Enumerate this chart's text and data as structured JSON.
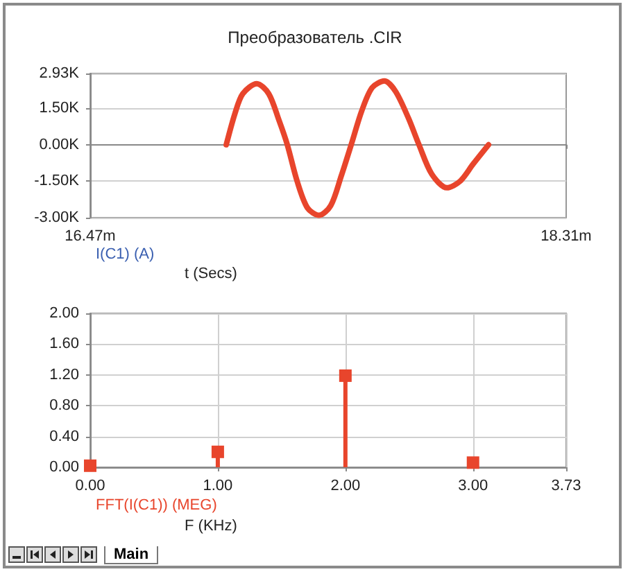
{
  "chart_data": [
    {
      "type": "line",
      "title": "Преобразователь .CIR",
      "xlabel": "t (Secs)",
      "annotations": [
        "I(C1) (A)"
      ],
      "xlim": [
        16.47,
        18.31
      ],
      "xticks": [
        {
          "value": 16.47,
          "label": "16.47m"
        },
        {
          "value": 18.31,
          "label": "18.31m"
        }
      ],
      "ylim": [
        -3000,
        2930
      ],
      "yticks": [
        {
          "value": 2930,
          "label": "2.93K"
        },
        {
          "value": 1500,
          "label": "1.50K"
        },
        {
          "value": 0,
          "label": "0.00K"
        },
        {
          "value": -1500,
          "label": "-1.50K"
        },
        {
          "value": -3000,
          "label": "-3.00K"
        }
      ],
      "grid": "y",
      "marker": "none",
      "line_style": "solid",
      "series": [
        {
          "color": "#e8452c",
          "x": [
            16.996,
            17.03,
            17.06,
            17.114,
            17.16,
            17.2,
            17.232,
            17.27,
            17.31,
            17.355,
            17.4,
            17.44,
            17.479,
            17.52,
            17.56,
            17.607,
            17.65,
            17.7,
            17.741,
            17.79,
            17.849,
            17.9,
            17.95,
            18.01
          ],
          "values": [
            0,
            1300,
            2100,
            2510,
            2100,
            1000,
            0,
            -1500,
            -2600,
            -2900,
            -2500,
            -1300,
            0,
            1400,
            2350,
            2620,
            2200,
            1100,
            0,
            -1200,
            -1770,
            -1500,
            -800,
            0
          ]
        }
      ]
    },
    {
      "type": "lollipop",
      "xlabel": "F (KHz)",
      "annotations": [
        "FFT(I(C1)) (MEG)",
        "Main"
      ],
      "x": [
        0,
        1,
        2,
        3
      ],
      "xlim": [
        0,
        3.73
      ],
      "xticks": [
        {
          "value": 0,
          "label": "0.00"
        },
        {
          "value": 1,
          "label": "1.00"
        },
        {
          "value": 2,
          "label": "2.00"
        },
        {
          "value": 3,
          "label": "3.00"
        },
        {
          "value": 3.73,
          "label": "3.73"
        }
      ],
      "ylim": [
        0,
        2
      ],
      "yticks": [
        {
          "value": 0,
          "label": "0.00"
        },
        {
          "value": 0.4,
          "label": "0.40"
        },
        {
          "value": 0.8,
          "label": "0.80"
        },
        {
          "value": 1.2,
          "label": "1.20"
        },
        {
          "value": 1.6,
          "label": "1.60"
        },
        {
          "value": 2,
          "label": "2.00"
        }
      ],
      "grid": true,
      "marker": "square",
      "series": [
        {
          "color": "#e8452c",
          "values": [
            0.02,
            0.2,
            1.19,
            0.06
          ]
        }
      ]
    }
  ]
}
